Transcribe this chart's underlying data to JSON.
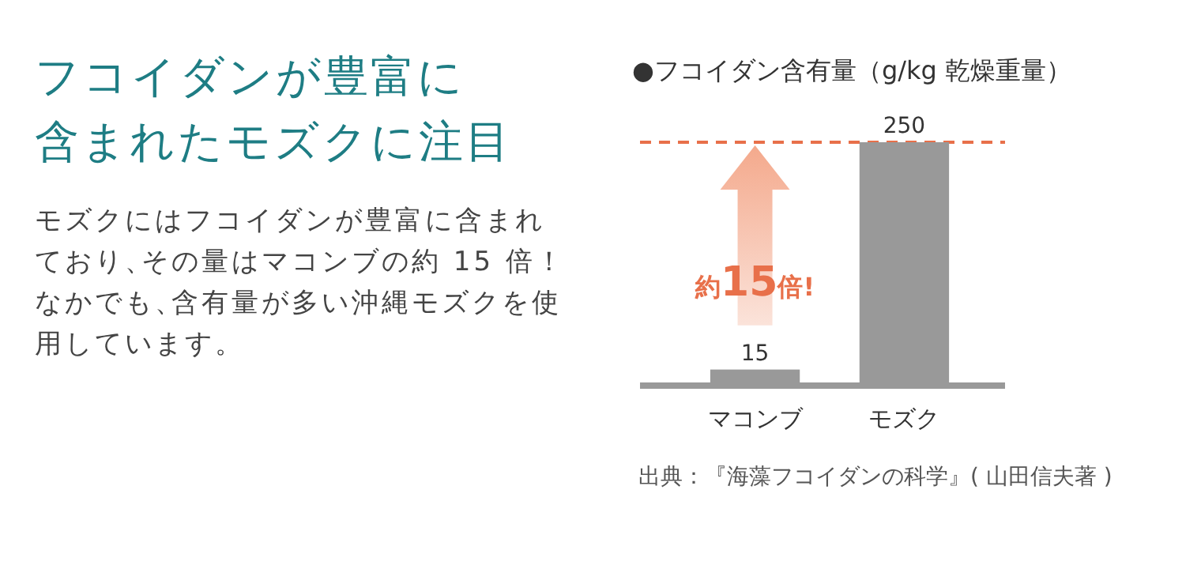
{
  "chart_data": [
    {
      "type": "other",
      "title": "フコイダンが豊富に含まれたモズクに注目",
      "annotations": [
        "モズクにはフコイダンが豊富に含まれており、その量はマコンブの約 15 倍！なかでも、含有量が多い沖縄モズクを使用しています。"
      ]
    },
    {
      "type": "bar",
      "title": "●フコイダン含有量（g/kg 乾燥重量）",
      "categories": [
        "マコンブ",
        "モズク"
      ],
      "values": [
        15,
        250
      ],
      "color": "#999999",
      "data_labels": true,
      "ref_lines": [
        {
          "axis": "y",
          "value": 250,
          "color": "#e8704a",
          "line_style": "dashed"
        }
      ],
      "annotations": [
        "約15倍!",
        "出典：『海藻フコイダンの科学』( 山田信夫著 )"
      ]
    }
  ]
}
